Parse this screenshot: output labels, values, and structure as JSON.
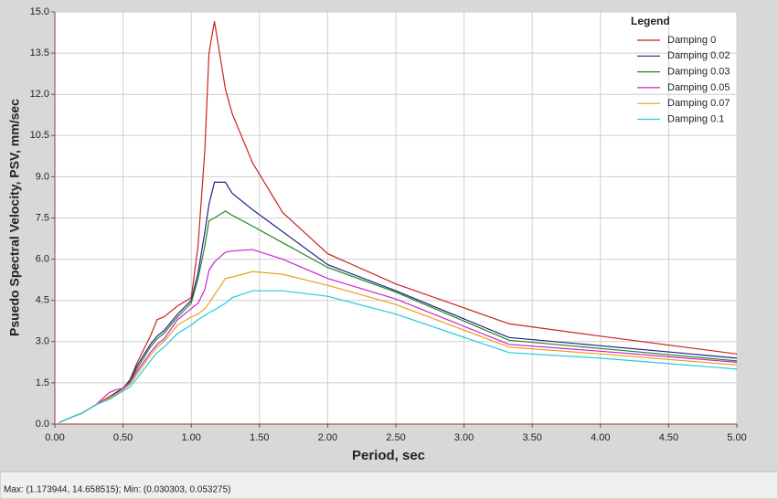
{
  "chart_data": {
    "type": "line",
    "xlabel": "Period, sec",
    "ylabel": "Psuedo Spectral Velocity, PSV, mm/sec",
    "legend_title": "Legend",
    "legend": "top-right",
    "grid": true,
    "xlim": [
      0,
      5
    ],
    "ylim": [
      0,
      15
    ],
    "xticks": [
      {
        "value": 0,
        "label": "0.00"
      },
      {
        "value": 0.5,
        "label": "0.50"
      },
      {
        "value": 1,
        "label": "1.00"
      },
      {
        "value": 1.5,
        "label": "1.50"
      },
      {
        "value": 2,
        "label": "2.00"
      },
      {
        "value": 2.5,
        "label": "2.50"
      },
      {
        "value": 3,
        "label": "3.00"
      },
      {
        "value": 3.5,
        "label": "3.50"
      },
      {
        "value": 4,
        "label": "4.00"
      },
      {
        "value": 4.5,
        "label": "4.50"
      },
      {
        "value": 5,
        "label": "5.00"
      }
    ],
    "yticks": [
      {
        "value": 0,
        "label": "0.0"
      },
      1.5,
      {
        "value": 3,
        "label": "3.0"
      },
      4.5,
      {
        "value": 6,
        "label": "6.0"
      },
      7.5,
      {
        "value": 9,
        "label": "9.0"
      },
      10.5,
      {
        "value": 12,
        "label": "12.0"
      },
      13.5,
      {
        "value": 15,
        "label": "15.0"
      }
    ],
    "x": [
      0.03,
      0.1,
      0.2,
      0.3,
      0.4,
      0.45,
      0.5,
      0.55,
      0.6,
      0.7,
      0.75,
      0.8,
      0.9,
      1.0,
      1.05,
      1.1,
      1.13,
      1.17,
      1.25,
      1.3,
      1.45,
      1.67,
      2.0,
      2.5,
      3.33,
      4.0,
      5.0
    ],
    "series": [
      {
        "name": "Damping 0",
        "color": "#cc2222",
        "values": [
          0.05,
          0.2,
          0.4,
          0.7,
          1.0,
          1.15,
          1.3,
          1.6,
          2.2,
          3.2,
          3.8,
          3.9,
          4.3,
          4.6,
          6.5,
          10.0,
          13.5,
          14.66,
          12.2,
          11.3,
          9.5,
          7.7,
          6.2,
          5.1,
          3.65,
          3.2,
          2.55
        ]
      },
      {
        "name": "Damping 0.02",
        "color": "#22228a",
        "values": [
          0.05,
          0.2,
          0.4,
          0.7,
          0.95,
          1.15,
          1.3,
          1.6,
          2.1,
          2.9,
          3.2,
          3.4,
          4.0,
          4.5,
          5.5,
          7.0,
          8.0,
          8.8,
          8.8,
          8.4,
          7.8,
          7.0,
          5.8,
          4.85,
          3.15,
          2.85,
          2.4
        ]
      },
      {
        "name": "Damping 0.03",
        "color": "#228822",
        "values": [
          0.05,
          0.2,
          0.4,
          0.7,
          0.95,
          1.1,
          1.3,
          1.55,
          2.0,
          2.8,
          3.1,
          3.3,
          3.9,
          4.4,
          5.3,
          6.5,
          7.4,
          7.5,
          7.75,
          7.6,
          7.2,
          6.6,
          5.7,
          4.8,
          3.05,
          2.75,
          2.3
        ]
      },
      {
        "name": "Damping 0.05",
        "color": "#cc22cc",
        "values": [
          0.05,
          0.2,
          0.4,
          0.7,
          1.15,
          1.25,
          1.3,
          1.5,
          1.9,
          2.6,
          2.9,
          3.1,
          3.8,
          4.2,
          4.4,
          4.9,
          5.6,
          5.9,
          6.25,
          6.3,
          6.35,
          6.0,
          5.3,
          4.55,
          2.9,
          2.65,
          2.25
        ]
      },
      {
        "name": "Damping 0.07",
        "color": "#e8a020",
        "values": [
          0.05,
          0.2,
          0.4,
          0.7,
          0.95,
          1.1,
          1.25,
          1.45,
          1.8,
          2.5,
          2.8,
          3.0,
          3.6,
          3.9,
          4.0,
          4.2,
          4.4,
          4.7,
          5.3,
          5.35,
          5.55,
          5.45,
          5.05,
          4.35,
          2.8,
          2.55,
          2.15
        ]
      },
      {
        "name": "Damping 0.1",
        "color": "#22ccdd",
        "values": [
          0.05,
          0.2,
          0.4,
          0.7,
          0.9,
          1.05,
          1.2,
          1.35,
          1.65,
          2.3,
          2.6,
          2.8,
          3.3,
          3.6,
          3.8,
          3.95,
          4.05,
          4.15,
          4.4,
          4.6,
          4.85,
          4.85,
          4.65,
          4.0,
          2.6,
          2.4,
          2.0
        ]
      }
    ]
  },
  "status_bar": {
    "text": "Max: (1.173944, 14.658515);   Min: (0.030303, 0.053275)"
  }
}
